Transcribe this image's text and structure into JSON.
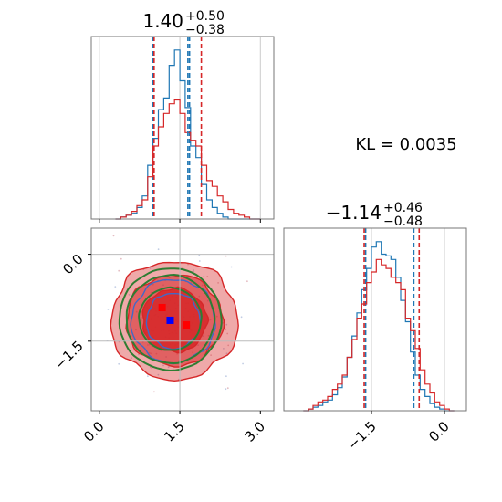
{
  "chart_data": [
    {
      "type": "histogram",
      "panel": "top-left marginal",
      "title_main": "1.40",
      "title_upper": "+0.50",
      "title_lower": "−0.38",
      "xlim": [
        -0.15,
        3.25
      ],
      "x_ticks": [
        0.0,
        1.5,
        3.0
      ],
      "bins": [
        0.35,
        0.45,
        0.55,
        0.65,
        0.75,
        0.85,
        0.95,
        1.05,
        1.15,
        1.25,
        1.35,
        1.45,
        1.55,
        1.65,
        1.75,
        1.85,
        1.95,
        2.05,
        2.15,
        2.25,
        2.35,
        2.45,
        2.55,
        2.65,
        2.75,
        2.85,
        2.95
      ],
      "series": [
        {
          "name": "blue",
          "color": "#1f77b4",
          "quantiles": [
            1.0,
            1.68
          ],
          "values": [
            0,
            1,
            2,
            3,
            6,
            12,
            28,
            42,
            57,
            63,
            80,
            88,
            72,
            58,
            38,
            32,
            18,
            10,
            6,
            3,
            1,
            0,
            0,
            0,
            0,
            0,
            0
          ]
        },
        {
          "name": "red",
          "color": "#d62728",
          "quantiles": [
            1.02,
            1.9
          ],
          "values": [
            0,
            1,
            2,
            4,
            7,
            10,
            22,
            38,
            48,
            55,
            60,
            62,
            55,
            45,
            41,
            38,
            28,
            20,
            17,
            12,
            9,
            5,
            3,
            2,
            1,
            0,
            0
          ]
        }
      ],
      "blue_median_line": 1.65
    },
    {
      "type": "histogram",
      "panel": "bottom-right marginal",
      "title_main": "−1.14",
      "title_upper": "+0.46",
      "title_lower": "−0.48",
      "xlim": [
        -3.3,
        0.45
      ],
      "x_ticks": [
        -1.5,
        0.0
      ],
      "x_tick_labels": [
        "−1.5",
        "0.0"
      ],
      "bins": [
        -2.85,
        -2.75,
        -2.65,
        -2.55,
        -2.45,
        -2.35,
        -2.25,
        -2.15,
        -2.05,
        -1.95,
        -1.85,
        -1.75,
        -1.65,
        -1.55,
        -1.45,
        -1.35,
        -1.25,
        -1.15,
        -1.05,
        -0.95,
        -0.85,
        -0.75,
        -0.65,
        -0.55,
        -0.45,
        -0.35,
        -0.25,
        -0.15,
        -0.05,
        0.05,
        0.15
      ],
      "series": [
        {
          "name": "blue",
          "color": "#1f77b4",
          "quantiles": [
            -1.62,
            -0.63
          ],
          "values": [
            0,
            1,
            2,
            3,
            5,
            6,
            9,
            13,
            19,
            30,
            42,
            55,
            68,
            80,
            92,
            95,
            88,
            87,
            85,
            75,
            62,
            50,
            33,
            20,
            12,
            8,
            4,
            2,
            1,
            0,
            0
          ]
        },
        {
          "name": "red",
          "color": "#d62728",
          "quantiles": [
            -1.65,
            -0.52
          ],
          "values": [
            0,
            1,
            3,
            5,
            6,
            8,
            12,
            15,
            20,
            30,
            40,
            52,
            60,
            72,
            78,
            85,
            82,
            80,
            75,
            72,
            68,
            52,
            45,
            35,
            23,
            15,
            10,
            5,
            3,
            1,
            0
          ]
        }
      ]
    },
    {
      "type": "contour",
      "panel": "bottom-left joint",
      "xlim": [
        -0.15,
        3.25
      ],
      "ylim": [
        -2.7,
        0.45
      ],
      "x_ticks": [
        0.0,
        1.5,
        3.0
      ],
      "x_tick_labels": [
        "0.0",
        "1.5",
        "3.0"
      ],
      "y_ticks": [
        0.0,
        -1.5
      ],
      "y_tick_labels": [
        "0.0",
        "−1.5"
      ],
      "series": [
        {
          "name": "red",
          "color": "#d62728",
          "center": [
            1.4,
            -1.14
          ],
          "levels": [
            [
              0.6,
              0.55
            ],
            [
              0.9,
              0.78
            ],
            [
              1.18,
              1.02
            ]
          ]
        },
        {
          "name": "blue",
          "color": "#4169c8",
          "center": [
            1.38,
            -1.15
          ],
          "levels": [
            [
              0.5,
              0.48
            ],
            [
              0.78,
              0.72
            ]
          ]
        },
        {
          "name": "green",
          "color": "#2e7d32",
          "center": [
            1.32,
            -1.12
          ],
          "levels": [
            [
              0.58,
              0.54
            ],
            [
              0.82,
              0.76
            ],
            [
              0.95,
              0.88
            ]
          ]
        }
      ],
      "markers": [
        {
          "color": "#ff0000",
          "x": 1.17,
          "y": -0.92
        },
        {
          "color": "#0000ff",
          "x": 1.32,
          "y": -1.14
        },
        {
          "color": "#ff0000",
          "x": 1.62,
          "y": -1.22
        }
      ],
      "ref_lines": {
        "x": [
          1.5
        ],
        "y": [
          -1.5,
          0.0
        ]
      }
    }
  ],
  "annotation": {
    "kl_text": "KL = 0.0035"
  }
}
